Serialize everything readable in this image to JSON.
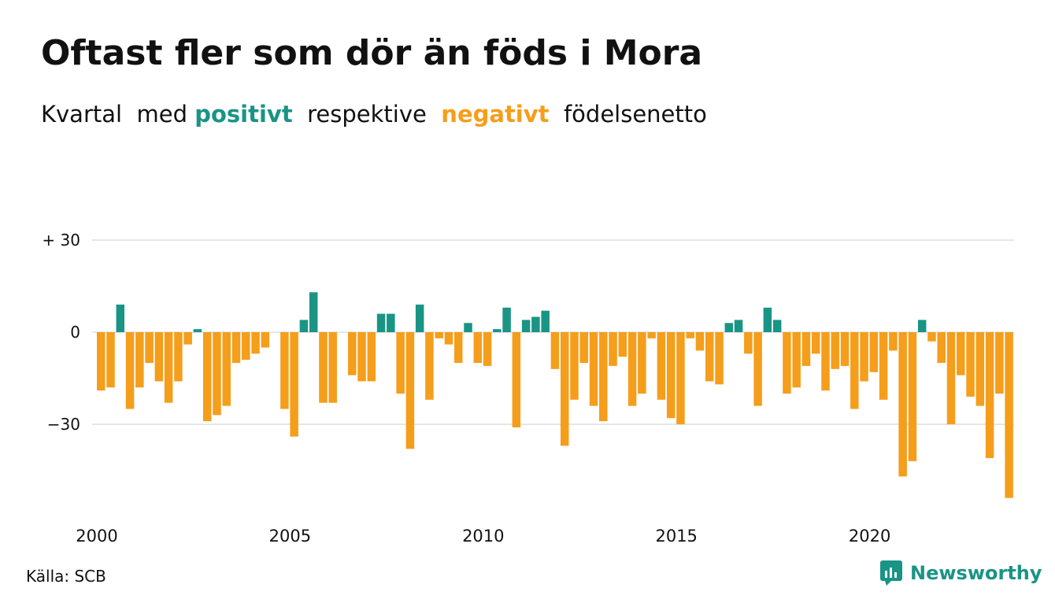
{
  "title": "Oftast fler som dör än föds i Mora",
  "subtitle": {
    "part1": "Kvartal  med ",
    "positive": "positivt",
    "part2": "  respektive  ",
    "negative": "negativt",
    "part3": "  födelsenetto"
  },
  "source": "Källa: SCB",
  "brand": {
    "name": "Newsworthy",
    "icon": "newsworthy-logo-icon"
  },
  "colors": {
    "positive": "#1a9485",
    "negative": "#f59e1b",
    "grid": "#dddddd",
    "text": "#111111"
  },
  "chart_data": {
    "type": "bar",
    "title": "Oftast fler som dör än föds i Mora",
    "subtitle": "Kvartal med positivt respektive negativt födelsenetto",
    "ylim": [
      -55,
      30
    ],
    "y_ticks": [
      {
        "value": 30,
        "label": "+ 30"
      },
      {
        "value": 0,
        "label": "0"
      },
      {
        "value": -30,
        "label": "−30"
      }
    ],
    "x_ticks": [
      {
        "value": 2000,
        "label": "2000"
      },
      {
        "value": 2005,
        "label": "2005"
      },
      {
        "value": 2010,
        "label": "2010"
      },
      {
        "value": 2015,
        "label": "2015"
      },
      {
        "value": 2020,
        "label": "2020"
      }
    ],
    "grid": true,
    "start": {
      "year": 2000,
      "quarter": 1
    },
    "values": [
      -19,
      -18,
      9,
      -25,
      -18,
      -10,
      -16,
      -23,
      -16,
      -4,
      1,
      -29,
      -27,
      -24,
      -10,
      -9,
      -7,
      -5,
      0,
      -25,
      -34,
      4,
      13,
      -23,
      -23,
      0,
      -14,
      -16,
      -16,
      6,
      6,
      -20,
      -38,
      9,
      -22,
      -2,
      -4,
      -10,
      3,
      -10,
      -11,
      1,
      8,
      -31,
      4,
      5,
      7,
      -12,
      -37,
      -22,
      -10,
      -24,
      -29,
      -11,
      -8,
      -24,
      -20,
      -2,
      -22,
      -28,
      -30,
      -2,
      -6,
      -16,
      -17,
      3,
      4,
      -7,
      -24,
      8,
      4,
      -20,
      -18,
      -11,
      -7,
      -19,
      -12,
      -11,
      -25,
      -16,
      -13,
      -22,
      -6,
      -47,
      -42,
      4,
      -3,
      -10,
      -30,
      -14,
      -21,
      -24,
      -41,
      -20,
      -54
    ]
  }
}
